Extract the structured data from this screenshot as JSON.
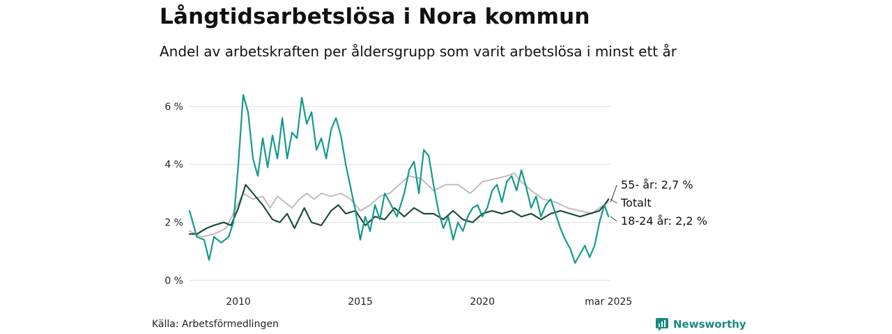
{
  "header": {
    "title": "Långtidsarbetslösa i Nora kommun",
    "subtitle": "Andel av arbetskraften per åldersgrupp som varit arbetslösa i minst ett år"
  },
  "footer": {
    "source": "Källa: Arbetsförmedlingen",
    "brand": "Newsworthy"
  },
  "colors": {
    "age_18_24": "#14998a",
    "total": "#1e4a3e",
    "age_55_plus": "#bcbcbc",
    "grid": "#dddddd",
    "brand": "#1a8a80"
  },
  "chart_data": {
    "type": "line",
    "title": "Långtidsarbetslösa i Nora kommun",
    "subtitle": "Andel av arbetskraften per åldersgrupp som varit arbetslösa i minst ett år",
    "ylim": [
      0,
      6.5
    ],
    "xlim": [
      2008.0,
      2025.25
    ],
    "y_ticks": [
      {
        "value": 0,
        "label": "0 %"
      },
      {
        "value": 2,
        "label": "2 %"
      },
      {
        "value": 4,
        "label": "4 %"
      },
      {
        "value": 6,
        "label": "6 %"
      }
    ],
    "x_ticks": [
      {
        "value": 2010,
        "label": "2010"
      },
      {
        "value": 2015,
        "label": "2015"
      },
      {
        "value": 2020,
        "label": "2020"
      },
      {
        "value": 2025.17,
        "label": "mar 2025"
      }
    ],
    "grid": "horizontal",
    "series": [
      {
        "key": "age_55_plus",
        "end_label": "55- år: 2,7 %",
        "points": [
          [
            2008.0,
            1.7
          ],
          [
            2008.5,
            1.5
          ],
          [
            2009.0,
            1.6
          ],
          [
            2009.5,
            1.8
          ],
          [
            2009.9,
            2.5
          ],
          [
            2010.2,
            3.0
          ],
          [
            2010.6,
            2.8
          ],
          [
            2011.0,
            2.9
          ],
          [
            2011.3,
            2.5
          ],
          [
            2011.6,
            2.9
          ],
          [
            2011.9,
            2.7
          ],
          [
            2012.2,
            2.5
          ],
          [
            2012.5,
            2.8
          ],
          [
            2012.8,
            3.0
          ],
          [
            2013.1,
            2.8
          ],
          [
            2013.4,
            3.0
          ],
          [
            2013.8,
            2.9
          ],
          [
            2014.2,
            3.0
          ],
          [
            2014.6,
            2.8
          ],
          [
            2015.0,
            2.4
          ],
          [
            2015.4,
            2.6
          ],
          [
            2015.8,
            2.9
          ],
          [
            2016.2,
            3.0
          ],
          [
            2016.6,
            3.3
          ],
          [
            2017.0,
            3.6
          ],
          [
            2017.5,
            3.5
          ],
          [
            2018.0,
            3.1
          ],
          [
            2018.5,
            3.3
          ],
          [
            2019.0,
            3.3
          ],
          [
            2019.5,
            3.0
          ],
          [
            2020.0,
            3.4
          ],
          [
            2020.5,
            3.5
          ],
          [
            2021.0,
            3.6
          ],
          [
            2021.3,
            3.7
          ],
          [
            2021.6,
            3.4
          ],
          [
            2022.0,
            3.1
          ],
          [
            2022.5,
            2.8
          ],
          [
            2023.0,
            2.7
          ],
          [
            2023.5,
            2.5
          ],
          [
            2024.0,
            2.4
          ],
          [
            2024.5,
            2.3
          ],
          [
            2024.8,
            2.5
          ],
          [
            2025.17,
            2.7
          ]
        ]
      },
      {
        "key": "total",
        "end_label": "Totalt",
        "points": [
          [
            2008.0,
            1.6
          ],
          [
            2008.3,
            1.6
          ],
          [
            2008.7,
            1.8
          ],
          [
            2009.0,
            1.9
          ],
          [
            2009.4,
            2.0
          ],
          [
            2009.7,
            1.9
          ],
          [
            2010.0,
            2.5
          ],
          [
            2010.3,
            3.3
          ],
          [
            2010.6,
            3.0
          ],
          [
            2011.0,
            2.6
          ],
          [
            2011.4,
            2.1
          ],
          [
            2011.7,
            2.0
          ],
          [
            2012.0,
            2.3
          ],
          [
            2012.3,
            1.8
          ],
          [
            2012.7,
            2.5
          ],
          [
            2013.0,
            2.0
          ],
          [
            2013.4,
            1.9
          ],
          [
            2013.8,
            2.4
          ],
          [
            2014.1,
            2.6
          ],
          [
            2014.4,
            2.3
          ],
          [
            2014.8,
            2.4
          ],
          [
            2015.2,
            1.9
          ],
          [
            2015.6,
            2.2
          ],
          [
            2016.0,
            2.1
          ],
          [
            2016.4,
            2.5
          ],
          [
            2016.8,
            2.2
          ],
          [
            2017.2,
            2.5
          ],
          [
            2017.6,
            2.3
          ],
          [
            2018.0,
            2.3
          ],
          [
            2018.4,
            2.1
          ],
          [
            2018.8,
            2.4
          ],
          [
            2019.2,
            2.1
          ],
          [
            2019.6,
            2.0
          ],
          [
            2020.0,
            2.3
          ],
          [
            2020.4,
            2.4
          ],
          [
            2020.8,
            2.3
          ],
          [
            2021.2,
            2.4
          ],
          [
            2021.6,
            2.2
          ],
          [
            2022.0,
            2.3
          ],
          [
            2022.4,
            2.1
          ],
          [
            2022.8,
            2.3
          ],
          [
            2023.2,
            2.4
          ],
          [
            2023.6,
            2.3
          ],
          [
            2024.0,
            2.2
          ],
          [
            2024.4,
            2.3
          ],
          [
            2024.8,
            2.4
          ],
          [
            2025.0,
            2.6
          ],
          [
            2025.17,
            2.8
          ]
        ]
      },
      {
        "key": "age_18_24",
        "end_label": "18-24 år: 2,2 %",
        "points": [
          [
            2008.0,
            2.4
          ],
          [
            2008.3,
            1.5
          ],
          [
            2008.6,
            1.4
          ],
          [
            2008.8,
            0.7
          ],
          [
            2009.0,
            1.5
          ],
          [
            2009.3,
            1.3
          ],
          [
            2009.6,
            1.5
          ],
          [
            2009.8,
            2.0
          ],
          [
            2010.0,
            4.0
          ],
          [
            2010.2,
            6.4
          ],
          [
            2010.4,
            5.8
          ],
          [
            2010.6,
            4.2
          ],
          [
            2010.8,
            3.6
          ],
          [
            2011.0,
            4.9
          ],
          [
            2011.2,
            3.9
          ],
          [
            2011.4,
            5.0
          ],
          [
            2011.6,
            4.2
          ],
          [
            2011.8,
            5.6
          ],
          [
            2012.0,
            4.2
          ],
          [
            2012.2,
            5.1
          ],
          [
            2012.4,
            4.9
          ],
          [
            2012.6,
            6.3
          ],
          [
            2012.8,
            5.4
          ],
          [
            2013.0,
            5.8
          ],
          [
            2013.2,
            4.5
          ],
          [
            2013.4,
            4.9
          ],
          [
            2013.6,
            4.2
          ],
          [
            2013.8,
            5.2
          ],
          [
            2014.0,
            5.6
          ],
          [
            2014.2,
            5.0
          ],
          [
            2014.4,
            4.0
          ],
          [
            2014.6,
            3.2
          ],
          [
            2014.8,
            2.4
          ],
          [
            2015.0,
            1.4
          ],
          [
            2015.2,
            2.2
          ],
          [
            2015.4,
            1.7
          ],
          [
            2015.6,
            2.6
          ],
          [
            2015.8,
            2.1
          ],
          [
            2016.0,
            3.0
          ],
          [
            2016.2,
            2.7
          ],
          [
            2016.5,
            2.2
          ],
          [
            2016.8,
            3.0
          ],
          [
            2017.0,
            3.8
          ],
          [
            2017.2,
            4.1
          ],
          [
            2017.4,
            3.0
          ],
          [
            2017.6,
            4.5
          ],
          [
            2017.8,
            4.3
          ],
          [
            2018.0,
            3.3
          ],
          [
            2018.2,
            2.4
          ],
          [
            2018.4,
            1.8
          ],
          [
            2018.6,
            2.2
          ],
          [
            2018.8,
            1.4
          ],
          [
            2019.0,
            2.0
          ],
          [
            2019.2,
            1.7
          ],
          [
            2019.4,
            2.2
          ],
          [
            2019.6,
            2.5
          ],
          [
            2019.8,
            2.6
          ],
          [
            2020.0,
            2.2
          ],
          [
            2020.2,
            2.5
          ],
          [
            2020.4,
            3.1
          ],
          [
            2020.6,
            3.3
          ],
          [
            2020.8,
            2.7
          ],
          [
            2021.0,
            3.4
          ],
          [
            2021.2,
            3.6
          ],
          [
            2021.4,
            3.1
          ],
          [
            2021.6,
            3.8
          ],
          [
            2021.8,
            3.2
          ],
          [
            2022.0,
            2.5
          ],
          [
            2022.2,
            2.9
          ],
          [
            2022.4,
            2.2
          ],
          [
            2022.6,
            2.6
          ],
          [
            2022.8,
            2.8
          ],
          [
            2023.0,
            2.3
          ],
          [
            2023.2,
            1.8
          ],
          [
            2023.4,
            1.4
          ],
          [
            2023.6,
            1.1
          ],
          [
            2023.8,
            0.6
          ],
          [
            2024.0,
            0.9
          ],
          [
            2024.2,
            1.2
          ],
          [
            2024.4,
            0.8
          ],
          [
            2024.6,
            1.2
          ],
          [
            2024.8,
            2.0
          ],
          [
            2025.0,
            2.6
          ],
          [
            2025.17,
            2.2
          ]
        ]
      }
    ]
  }
}
